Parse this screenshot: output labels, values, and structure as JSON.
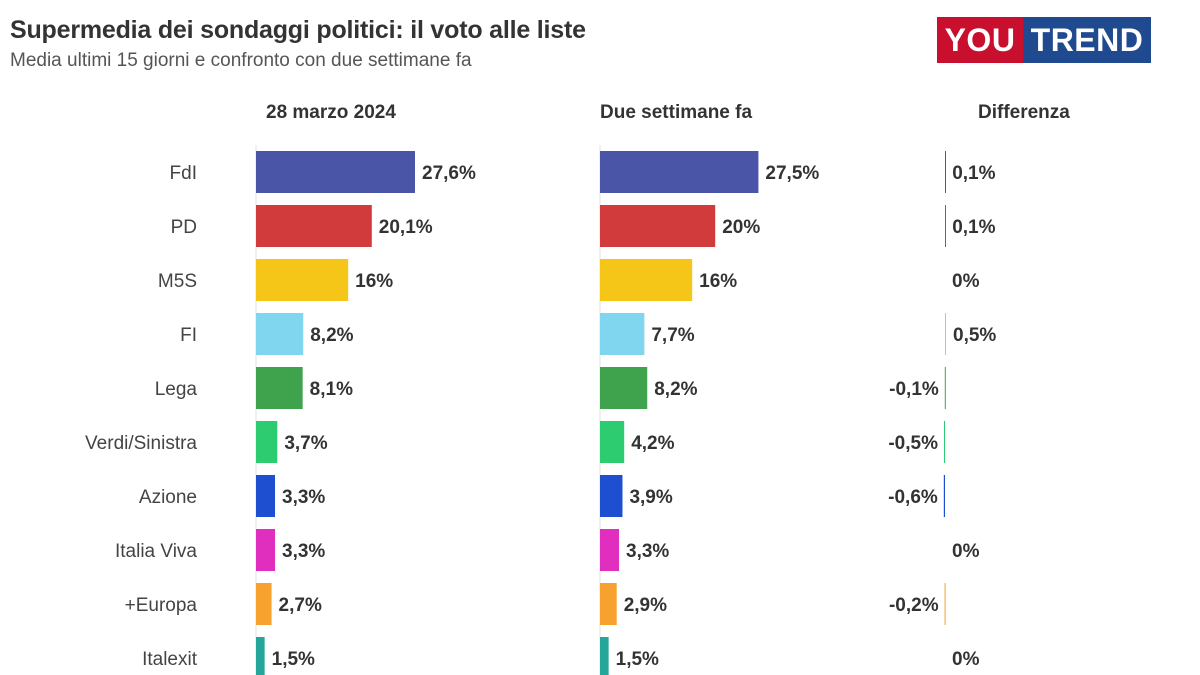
{
  "header": {
    "title": "Supermedia dei sondaggi politici: il voto alle liste",
    "subtitle": "Media ultimi 15 giorni e confronto con due settimane fa"
  },
  "logo": {
    "part_a": "YOU",
    "part_b": "TREND"
  },
  "columns": {
    "current": "28 marzo 2024",
    "previous": "Due settimane fa",
    "difference": "Differenza"
  },
  "chart_data": {
    "type": "bar",
    "orientation": "horizontal",
    "title": "Supermedia dei sondaggi politici: il voto alle liste",
    "subtitle": "Media ultimi 15 giorni e confronto con due settimane fa",
    "categories": [
      "FdI",
      "PD",
      "M5S",
      "FI",
      "Lega",
      "Verdi/Sinistra",
      "Azione",
      "Italia Viva",
      "+Europa",
      "Italexit"
    ],
    "series": [
      {
        "name": "28 marzo 2024",
        "values": [
          27.6,
          20.1,
          16,
          8.2,
          8.1,
          3.7,
          3.3,
          3.3,
          2.7,
          1.5
        ],
        "labels": [
          "27,6%",
          "20,1%",
          "16%",
          "8,2%",
          "8,1%",
          "3,7%",
          "3,3%",
          "3,3%",
          "2,7%",
          "1,5%"
        ]
      },
      {
        "name": "Due settimane fa",
        "values": [
          27.5,
          20,
          16,
          7.7,
          8.2,
          4.2,
          3.9,
          3.3,
          2.9,
          1.5
        ],
        "labels": [
          "27,5%",
          "20%",
          "16%",
          "7,7%",
          "8,2%",
          "4,2%",
          "3,9%",
          "3,3%",
          "2,9%",
          "1,5%"
        ]
      },
      {
        "name": "Differenza",
        "values": [
          0.1,
          0.1,
          0,
          0.5,
          -0.1,
          -0.5,
          -0.6,
          0,
          -0.2,
          0
        ],
        "labels": [
          "0,1%",
          "0,1%",
          "0%",
          "0,5%",
          "-0,1%",
          "-0,5%",
          "-0,6%",
          "0%",
          "-0,2%",
          "0%"
        ]
      }
    ],
    "colors": [
      "#4a55a8",
      "#d13b3b",
      "#f5c518",
      "#7fd6ee",
      "#3fa34d",
      "#2ecc71",
      "#1f4fd1",
      "#e02fbf",
      "#f7a12e",
      "#26a69a"
    ],
    "xlim": [
      0,
      27.6
    ],
    "grid": false,
    "legend": "none"
  }
}
